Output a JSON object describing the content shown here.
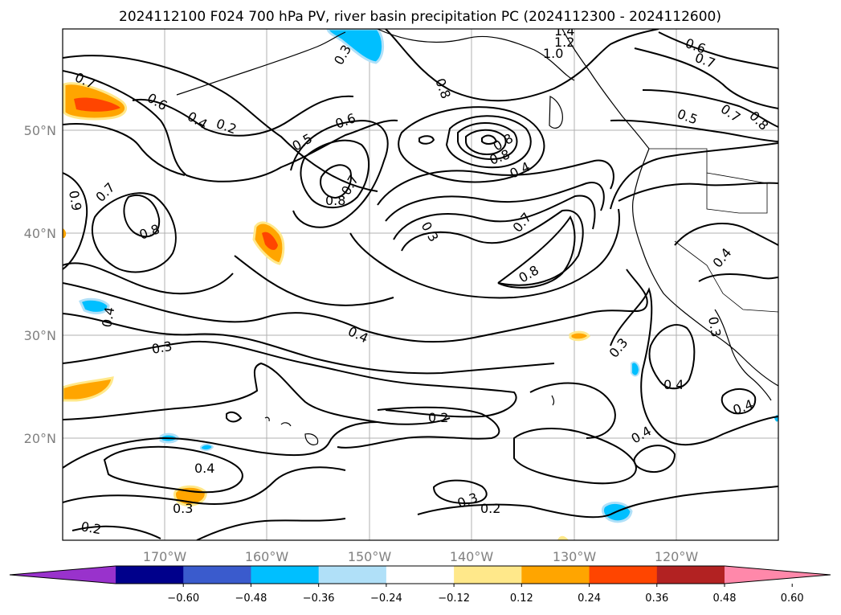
{
  "title": "2024112100 F024 700 hPa PV, river basin precipitation PC (2024112300 - 2024112600)",
  "lon_ticks": [
    "170°W",
    "160°W",
    "150°W",
    "140°W",
    "130°W",
    "120°W"
  ],
  "lat_ticks": [
    "50°N",
    "40°N",
    "30°N",
    "20°N"
  ],
  "colorbar": {
    "ticks": [
      "−0.60",
      "−0.48",
      "−0.36",
      "−0.24",
      "−0.12",
      "0.12",
      "0.24",
      "0.36",
      "0.48",
      "0.60"
    ],
    "colors": [
      "#9932cc",
      "#00008b",
      "#3a5bcd",
      "#00bfff",
      "#b0e0f8",
      "#ffffff",
      "#ffe88a",
      "#ffa500",
      "#ff4500",
      "#b22222",
      "#ff88aa"
    ]
  },
  "contour_labels": [
    {
      "text": "0.7"
    },
    {
      "text": "0.6"
    },
    {
      "text": "0.4"
    },
    {
      "text": "0.2"
    },
    {
      "text": "0.3"
    },
    {
      "text": "0.8"
    },
    {
      "text": "0.5"
    },
    {
      "text": "0.6"
    },
    {
      "text": "0.8"
    },
    {
      "text": "0.7"
    },
    {
      "text": "0.3"
    },
    {
      "text": "0.8"
    },
    {
      "text": "0.8"
    },
    {
      "text": "0.4"
    },
    {
      "text": "0.7"
    },
    {
      "text": "0.8"
    },
    {
      "text": "0.9"
    },
    {
      "text": "0.7"
    },
    {
      "text": "0.8"
    },
    {
      "text": "0.4"
    },
    {
      "text": "0.3"
    },
    {
      "text": "0.4"
    },
    {
      "text": "0.2"
    },
    {
      "text": "0.4"
    },
    {
      "text": "0.3"
    },
    {
      "text": "0.2"
    },
    {
      "text": "0.2"
    },
    {
      "text": "0.3"
    },
    {
      "text": "0.4"
    },
    {
      "text": "0.4"
    },
    {
      "text": "0.3"
    },
    {
      "text": "0.4"
    },
    {
      "text": "0.3"
    },
    {
      "text": "0.4"
    },
    {
      "text": "0.6"
    },
    {
      "text": "0.7"
    },
    {
      "text": "0.5"
    },
    {
      "text": "0.7"
    },
    {
      "text": "0.8"
    },
    {
      "text": "1.0"
    },
    {
      "text": "1.2"
    },
    {
      "text": "1.4"
    }
  ]
}
